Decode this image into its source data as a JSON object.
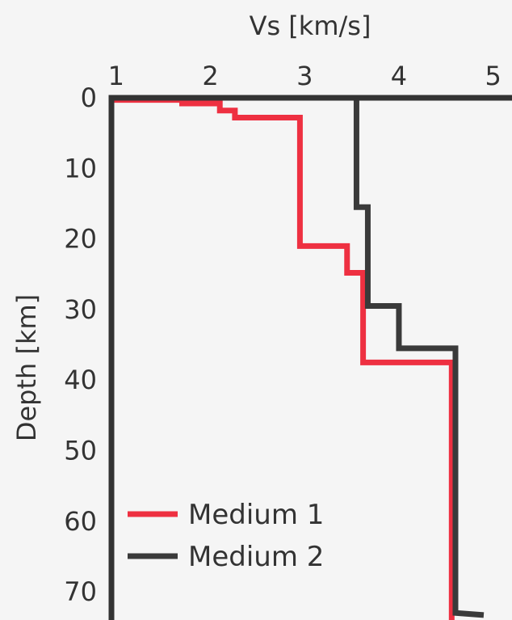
{
  "chart_data": {
    "type": "line",
    "xlabel": "Vs [km/s]",
    "ylabel": "Depth [km]",
    "x_ticks": [
      1,
      2,
      3,
      4,
      5
    ],
    "y_ticks": [
      0,
      10,
      20,
      30,
      40,
      50,
      60,
      70
    ],
    "xlim": [
      0.95,
      5.2
    ],
    "ylim": [
      0,
      74
    ],
    "legend_position": "bottom-left",
    "series": [
      {
        "name": "Medium 1",
        "color": "#ee3041",
        "points": [
          [
            0.95,
            0.0
          ],
          [
            0.95,
            0.3
          ],
          [
            1.7,
            0.3
          ],
          [
            1.7,
            0.8
          ],
          [
            2.1,
            0.8
          ],
          [
            2.1,
            1.8
          ],
          [
            2.26,
            1.8
          ],
          [
            2.26,
            2.8
          ],
          [
            2.95,
            2.8
          ],
          [
            2.95,
            21.0
          ],
          [
            3.45,
            21.0
          ],
          [
            3.45,
            24.8
          ],
          [
            3.62,
            24.8
          ],
          [
            3.62,
            37.5
          ],
          [
            4.56,
            37.5
          ],
          [
            4.56,
            74.0
          ]
        ]
      },
      {
        "name": "Medium 2",
        "color": "#3a3a3a",
        "points": [
          [
            3.55,
            0.0
          ],
          [
            3.55,
            15.5
          ],
          [
            3.67,
            15.5
          ],
          [
            3.67,
            29.5
          ],
          [
            4.0,
            29.5
          ],
          [
            4.0,
            35.5
          ],
          [
            4.6,
            35.5
          ],
          [
            4.6,
            73.0
          ],
          [
            4.9,
            73.3
          ]
        ]
      }
    ]
  }
}
